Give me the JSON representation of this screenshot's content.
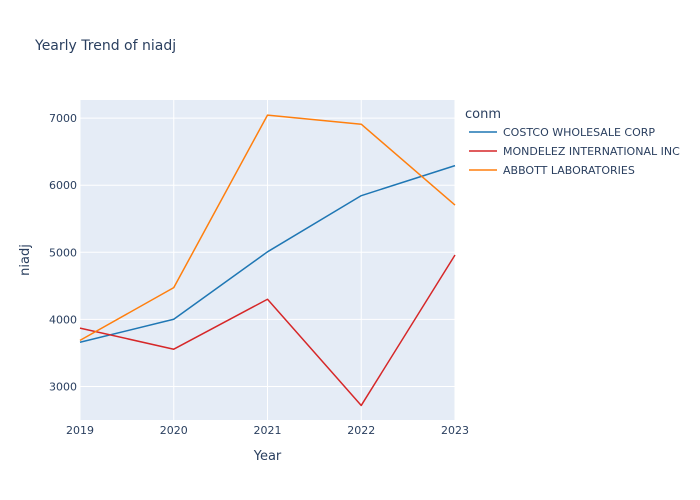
{
  "chart_data": {
    "type": "line",
    "title": "Yearly Trend of niadj",
    "xlabel": "Year",
    "ylabel": "niadj",
    "x": [
      2019,
      2020,
      2021,
      2022,
      2023
    ],
    "xlim": [
      2019,
      2023
    ],
    "ylim": [
      2500,
      7270
    ],
    "yticks": [
      3000,
      4000,
      5000,
      6000,
      7000
    ],
    "grid": true,
    "legend": {
      "title": "conm",
      "placement": "right"
    },
    "series": [
      {
        "name": "COSTCO WHOLESALE CORP",
        "color": "#1f77b4",
        "values": [
          3659,
          4002,
          5007,
          5844,
          6292
        ]
      },
      {
        "name": "MONDELEZ INTERNATIONAL INC",
        "color": "#d62728",
        "values": [
          3870,
          3555,
          4300,
          2717,
          4959
        ]
      },
      {
        "name": "ABBOTT LABORATORIES",
        "color": "#ff7f0e",
        "values": [
          3687,
          4473,
          7045,
          6909,
          5704
        ]
      }
    ]
  },
  "colors": {
    "plot_bg": "#e5ecf6",
    "grid": "#ffffff",
    "text": "#2a3f5f"
  }
}
